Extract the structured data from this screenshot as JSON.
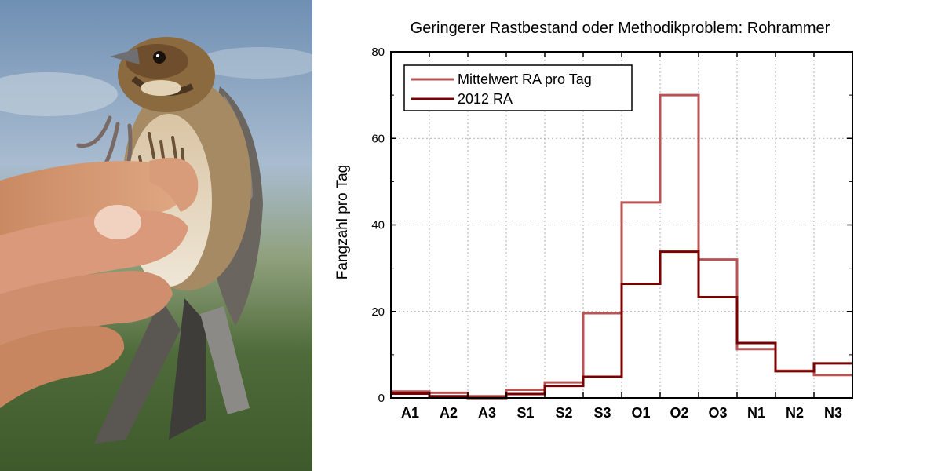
{
  "photo": {
    "subject": "Reed bunting (Rohrammer) held in hand"
  },
  "chart_data": {
    "type": "line",
    "style": "step",
    "title": "Geringerer Rastbestand oder Methodikproblem: Rohrammer",
    "xlabel": "",
    "ylabel": "Fangzahl pro Tag",
    "categories": [
      "A1",
      "A2",
      "A3",
      "S1",
      "S2",
      "S3",
      "O1",
      "O2",
      "O3",
      "N1",
      "N2",
      "N3"
    ],
    "ylim": [
      0,
      80
    ],
    "yticks": [
      0,
      20,
      40,
      60,
      80
    ],
    "grid": true,
    "legend_position": "top-left",
    "series": [
      {
        "name": "Mittelwert RA pro Tag",
        "color": "#b85454",
        "values": [
          1.5,
          1.2,
          0.4,
          1.9,
          3.6,
          19.6,
          45.2,
          70.0,
          32.0,
          11.3,
          6.3,
          5.3
        ]
      },
      {
        "name": "2012 RA",
        "color": "#7a0000",
        "values": [
          1.0,
          0.4,
          0.0,
          0.9,
          2.8,
          4.9,
          26.4,
          33.8,
          23.3,
          12.7,
          6.2,
          8.0
        ]
      }
    ]
  }
}
